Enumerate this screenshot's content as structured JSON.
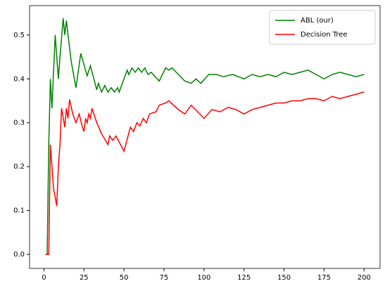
{
  "chart_data": {
    "type": "line",
    "legend": "upper right",
    "xlim": [
      -9,
      210
    ],
    "xticks": [
      0,
      25,
      50,
      75,
      100,
      125,
      150,
      175,
      200
    ],
    "ylim": [
      -0.032,
      0.567
    ],
    "yticks": [
      0.0,
      0.1,
      0.2,
      0.3,
      0.4,
      0.5
    ],
    "series": [
      {
        "name": "ABL (our)",
        "color": "#008000",
        "x": [
          1,
          2,
          3,
          4,
          5,
          7,
          9,
          10,
          12,
          13,
          14,
          17,
          20,
          23,
          27,
          29,
          33,
          34,
          36,
          38,
          40,
          42,
          44,
          46,
          47,
          49,
          52,
          53,
          55,
          57,
          59,
          61,
          63,
          65,
          67,
          72,
          76,
          78,
          80,
          84,
          88,
          92,
          95,
          98,
          103,
          108,
          112,
          118,
          125,
          130,
          135,
          140,
          145,
          150,
          155,
          160,
          165,
          170,
          175,
          180,
          185,
          190,
          195,
          200
        ],
        "values": [
          0,
          0,
          0.25,
          0.4,
          0.333,
          0.5,
          0.4,
          0.45,
          0.538,
          0.5,
          0.533,
          0.44,
          0.38,
          0.458,
          0.407,
          0.43,
          0.375,
          0.39,
          0.37,
          0.385,
          0.37,
          0.38,
          0.37,
          0.38,
          0.37,
          0.39,
          0.42,
          0.41,
          0.425,
          0.415,
          0.425,
          0.415,
          0.425,
          0.41,
          0.415,
          0.395,
          0.425,
          0.42,
          0.425,
          0.41,
          0.395,
          0.39,
          0.4,
          0.39,
          0.41,
          0.41,
          0.405,
          0.41,
          0.4,
          0.41,
          0.405,
          0.41,
          0.405,
          0.415,
          0.41,
          0.415,
          0.42,
          0.41,
          0.4,
          0.41,
          0.415,
          0.41,
          0.405,
          0.41
        ]
      },
      {
        "name": "Decision Tree",
        "color": "#ff0000",
        "x": [
          1,
          2,
          3,
          4,
          5,
          6,
          8,
          9,
          10,
          11,
          13,
          14,
          15,
          16,
          18,
          20,
          22,
          24,
          25,
          26,
          27,
          28,
          29,
          30,
          33,
          36,
          40,
          41,
          43,
          45,
          50,
          54,
          56,
          58,
          60,
          62,
          64,
          66,
          70,
          72,
          76,
          78,
          84,
          88,
          92,
          100,
          105,
          110,
          115,
          120,
          125,
          130,
          135,
          140,
          145,
          150,
          155,
          160,
          165,
          170,
          175,
          180,
          185,
          190,
          195,
          200
        ],
        "values": [
          0,
          0,
          0,
          0.25,
          0.2,
          0.15,
          0.11,
          0.2,
          0.25,
          0.333,
          0.29,
          0.333,
          0.31,
          0.353,
          0.32,
          0.3,
          0.32,
          0.29,
          0.28,
          0.31,
          0.3,
          0.32,
          0.31,
          0.333,
          0.3,
          0.275,
          0.25,
          0.27,
          0.26,
          0.27,
          0.235,
          0.29,
          0.28,
          0.3,
          0.293,
          0.31,
          0.3,
          0.32,
          0.325,
          0.34,
          0.345,
          0.35,
          0.33,
          0.32,
          0.34,
          0.31,
          0.33,
          0.325,
          0.335,
          0.33,
          0.32,
          0.33,
          0.335,
          0.34,
          0.345,
          0.345,
          0.35,
          0.35,
          0.355,
          0.355,
          0.35,
          0.36,
          0.355,
          0.36,
          0.365,
          0.37
        ]
      }
    ]
  }
}
